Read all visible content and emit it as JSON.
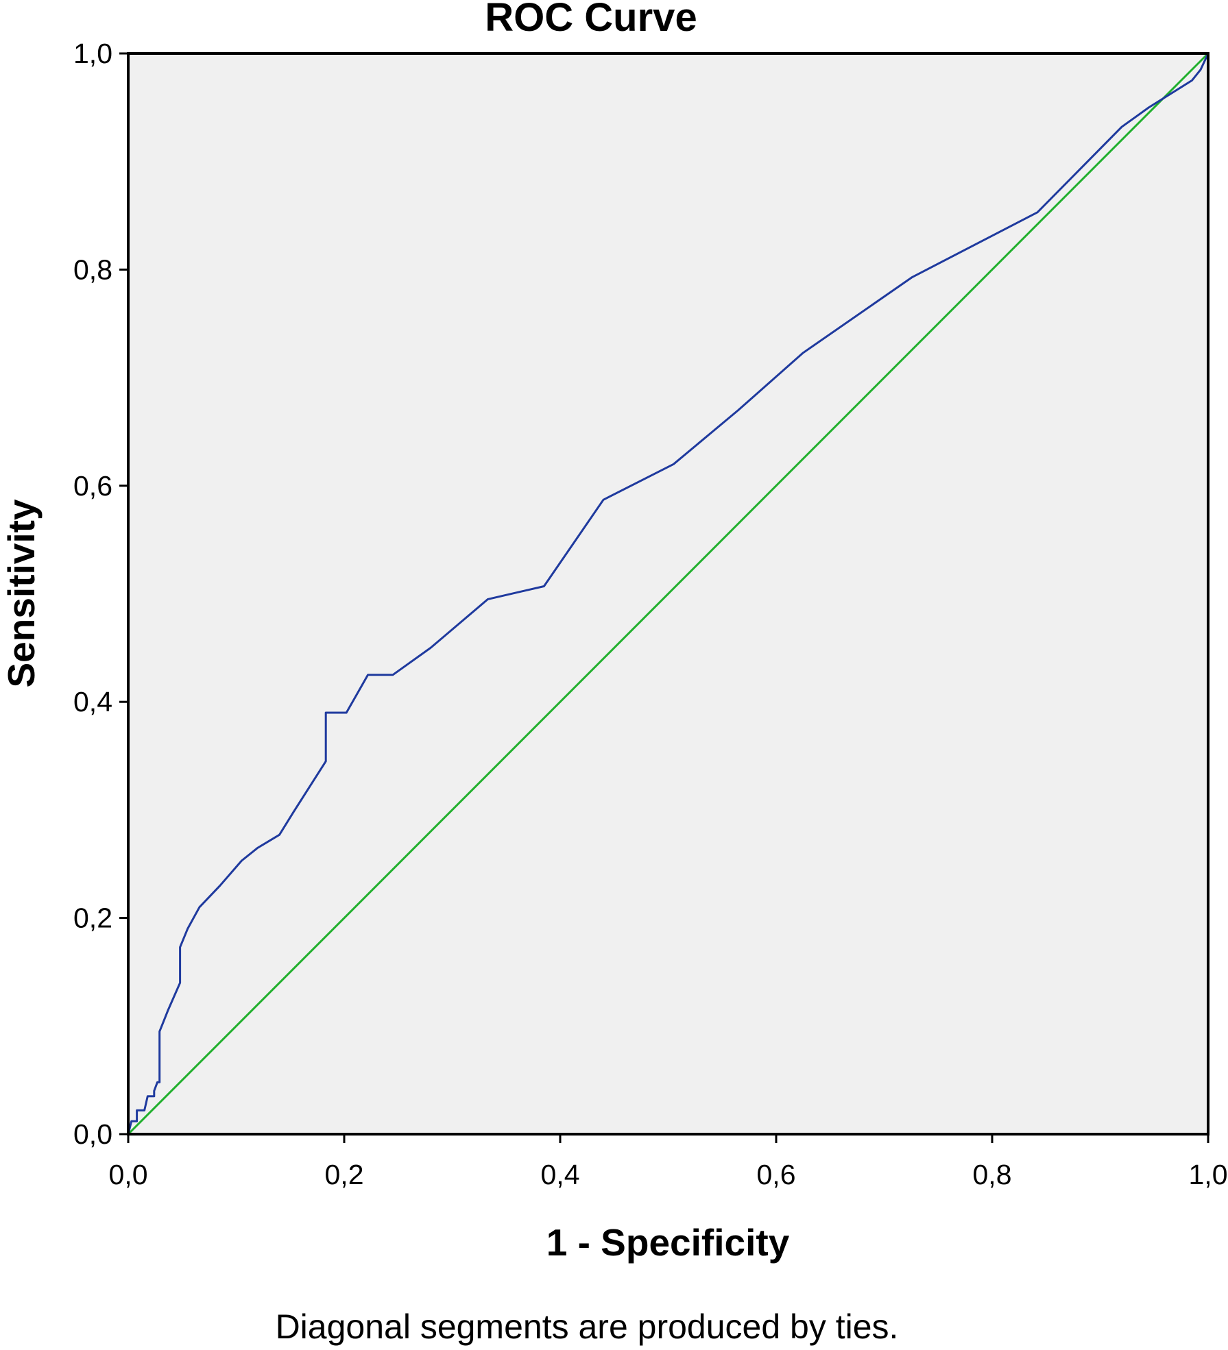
{
  "chart_data": {
    "type": "line",
    "title": "ROC Curve",
    "xlabel": "1 - Specificity",
    "ylabel": "Sensitivity",
    "xlim": [
      0,
      1
    ],
    "ylim": [
      0,
      1
    ],
    "xticks": [
      "0,0",
      "0,2",
      "0,4",
      "0,6",
      "0,8",
      "1,0"
    ],
    "yticks": [
      "0,0",
      "0,2",
      "0,4",
      "0,6",
      "0,8",
      "1,0"
    ],
    "grid": false,
    "background": "#f0f0f0",
    "footnote": "Diagonal segments are produced by ties.",
    "series": [
      {
        "color": "#1f3a9e",
        "points": [
          [
            0.0,
            0.0
          ],
          [
            0.003,
            0.012
          ],
          [
            0.008,
            0.012
          ],
          [
            0.008,
            0.022
          ],
          [
            0.015,
            0.022
          ],
          [
            0.018,
            0.035
          ],
          [
            0.024,
            0.035
          ],
          [
            0.024,
            0.04
          ],
          [
            0.027,
            0.048
          ],
          [
            0.029,
            0.048
          ],
          [
            0.029,
            0.095
          ],
          [
            0.033,
            0.105
          ],
          [
            0.037,
            0.115
          ],
          [
            0.048,
            0.14
          ],
          [
            0.048,
            0.173
          ],
          [
            0.055,
            0.19
          ],
          [
            0.066,
            0.21
          ],
          [
            0.085,
            0.23
          ],
          [
            0.105,
            0.253
          ],
          [
            0.12,
            0.265
          ],
          [
            0.14,
            0.277
          ],
          [
            0.153,
            0.298
          ],
          [
            0.183,
            0.345
          ],
          [
            0.183,
            0.39
          ],
          [
            0.202,
            0.39
          ],
          [
            0.222,
            0.425
          ],
          [
            0.245,
            0.425
          ],
          [
            0.28,
            0.45
          ],
          [
            0.333,
            0.495
          ],
          [
            0.385,
            0.507
          ],
          [
            0.44,
            0.587
          ],
          [
            0.505,
            0.62
          ],
          [
            0.565,
            0.67
          ],
          [
            0.625,
            0.723
          ],
          [
            0.726,
            0.793
          ],
          [
            0.842,
            0.853
          ],
          [
            0.92,
            0.932
          ],
          [
            0.945,
            0.95
          ],
          [
            0.985,
            0.975
          ],
          [
            0.993,
            0.985
          ],
          [
            1.0,
            1.0
          ]
        ]
      },
      {
        "color": "#22b02e",
        "points": [
          [
            0.0,
            0.0
          ],
          [
            1.0,
            1.0
          ]
        ]
      }
    ]
  }
}
